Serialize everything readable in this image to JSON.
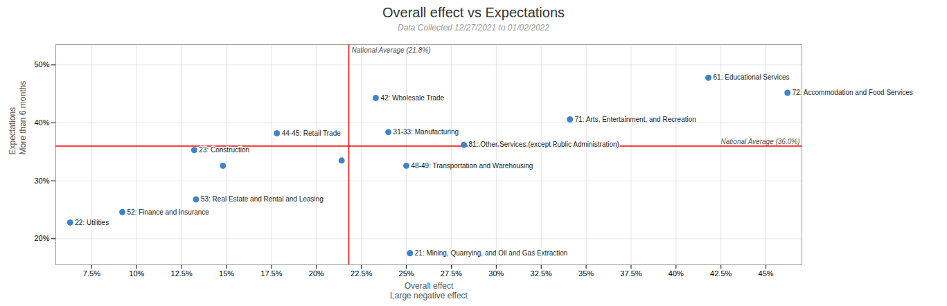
{
  "chart_data": {
    "type": "scatter",
    "title": "Overall effect vs Expectations",
    "subtitle": "Data Collected 12/27/2021 to 01/02/2022",
    "xlabel": "Overall effect\nLarge negative effect",
    "ylabel": "Expectations\nMore than 6 months",
    "xlim": [
      0.055,
      0.47
    ],
    "ylim": [
      0.155,
      0.535
    ],
    "xticks": [
      {
        "value": 0.075,
        "label": "7.5%"
      },
      {
        "value": 0.1,
        "label": "10%"
      },
      {
        "value": 0.125,
        "label": "12.5%"
      },
      {
        "value": 0.15,
        "label": "15%"
      },
      {
        "value": 0.175,
        "label": "17.5%"
      },
      {
        "value": 0.2,
        "label": "20%"
      },
      {
        "value": 0.225,
        "label": "22.5%"
      },
      {
        "value": 0.25,
        "label": "25%"
      },
      {
        "value": 0.275,
        "label": "27.5%"
      },
      {
        "value": 0.3,
        "label": "30%"
      },
      {
        "value": 0.325,
        "label": "32.5%"
      },
      {
        "value": 0.35,
        "label": "35%"
      },
      {
        "value": 0.375,
        "label": "37.5%"
      },
      {
        "value": 0.4,
        "label": "40%"
      },
      {
        "value": 0.425,
        "label": "42.5%"
      },
      {
        "value": 0.45,
        "label": "45%"
      }
    ],
    "yticks": [
      {
        "value": 0.2,
        "label": "20%"
      },
      {
        "value": 0.3,
        "label": "30%"
      },
      {
        "value": 0.4,
        "label": "40%"
      },
      {
        "value": 0.5,
        "label": "50%"
      }
    ],
    "grid": true,
    "color": "#3d85c8",
    "reference_lines": [
      {
        "axis": "x",
        "value": 0.218,
        "label": "National Average (21.8%)",
        "color": "red"
      },
      {
        "axis": "y",
        "value": 0.36,
        "label": "National Average (36.0%)",
        "color": "red"
      }
    ],
    "points": [
      {
        "x": 0.063,
        "y": 0.228,
        "label": "22: Utilities"
      },
      {
        "x": 0.092,
        "y": 0.246,
        "label": "52: Finance and Insurance"
      },
      {
        "x": 0.132,
        "y": 0.353,
        "label": "23: Construction"
      },
      {
        "x": 0.148,
        "y": 0.326
      },
      {
        "x": 0.133,
        "y": 0.268,
        "label": "53: Real Estate and Rental and Leasing"
      },
      {
        "x": 0.178,
        "y": 0.382,
        "label": "44-45: Retail Trade"
      },
      {
        "x": 0.214,
        "y": 0.335
      },
      {
        "x": 0.233,
        "y": 0.443,
        "label": "42: Wholesale Trade"
      },
      {
        "x": 0.24,
        "y": 0.384,
        "label": "31-33: Manufacturing"
      },
      {
        "x": 0.25,
        "y": 0.326,
        "label": "48-49: Transportation and Warehousing"
      },
      {
        "x": 0.252,
        "y": 0.175,
        "label": "21: Mining, Quarrying, and Oil and Gas Extraction"
      },
      {
        "x": 0.282,
        "y": 0.362,
        "label": "81: Other Services (except Public Administration)"
      },
      {
        "x": 0.341,
        "y": 0.406,
        "label": "71: Arts, Entertainment, and Recreation"
      },
      {
        "x": 0.418,
        "y": 0.478,
        "label": "61: Educational Services"
      },
      {
        "x": 0.462,
        "y": 0.452,
        "label": "72: Accommodation and Food Services"
      }
    ]
  }
}
